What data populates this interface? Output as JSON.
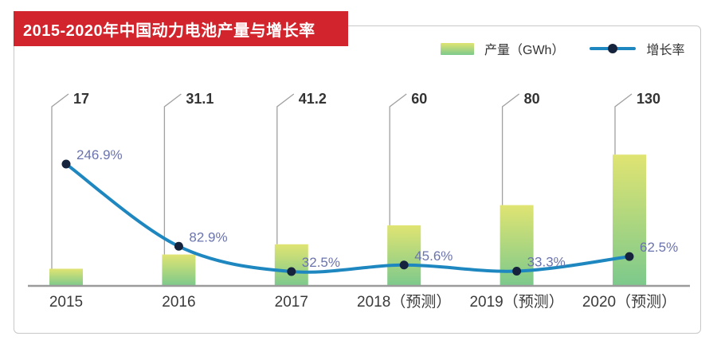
{
  "title": {
    "text": "2015-2020年中国动力电池产量与增长率"
  },
  "legend": {
    "bar_label": "产量（GWh）",
    "line_label": "增长率"
  },
  "chart_data": {
    "type": "bar",
    "subtype": "bar-line-combo",
    "title": "2015-2020年中国动力电池产量与增长率",
    "categories": [
      "2015",
      "2016",
      "2017",
      "2018（预测）",
      "2019（预测）",
      "2020（预测）"
    ],
    "series": [
      {
        "name": "产量（GWh）",
        "type": "bar",
        "unit": "GWh",
        "values": [
          17,
          31.1,
          41.2,
          60,
          80,
          130
        ],
        "value_labels": [
          "17",
          "31.1",
          "41.2",
          "60",
          "80",
          "130"
        ]
      },
      {
        "name": "增长率",
        "type": "line",
        "unit": "%",
        "values": [
          246.9,
          82.9,
          32.5,
          45.6,
          33.3,
          62.5
        ],
        "value_labels": [
          "246.9%",
          "82.9%",
          "32.5%",
          "45.6%",
          "33.3%",
          "62.5%"
        ]
      }
    ],
    "legend_position": "top-right",
    "grid": false,
    "xlabel": "",
    "ylabel": "",
    "colors": {
      "banner": "#d2242c",
      "title_text": "#ffffff",
      "bar_gradient_top": "#e0e472",
      "bar_gradient_bottom": "#7cc98c",
      "line": "#1e87c0",
      "marker": "#16233c",
      "growth_label": "#6b74ad",
      "bar_value_label": "#333333",
      "category_label": "#3a3a3a",
      "axis": "#9b9b9b",
      "leader_line": "#a0a0a0",
      "border": "#c8c8c8"
    }
  }
}
